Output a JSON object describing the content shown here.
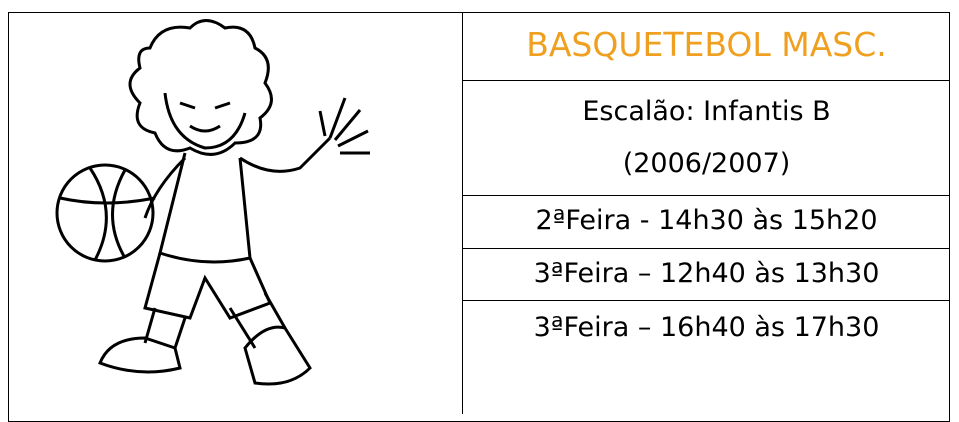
{
  "header": {
    "title": "BASQUETEBOL MASC."
  },
  "details": [
    "Escalão: Infantis B",
    "(2006/2007)"
  ],
  "schedule": [
    "2ªFeira - 14h30 às 15h20",
    "3ªFeira – 12h40 às 13h30",
    "3ªFeira – 16h40 às 17h30"
  ]
}
